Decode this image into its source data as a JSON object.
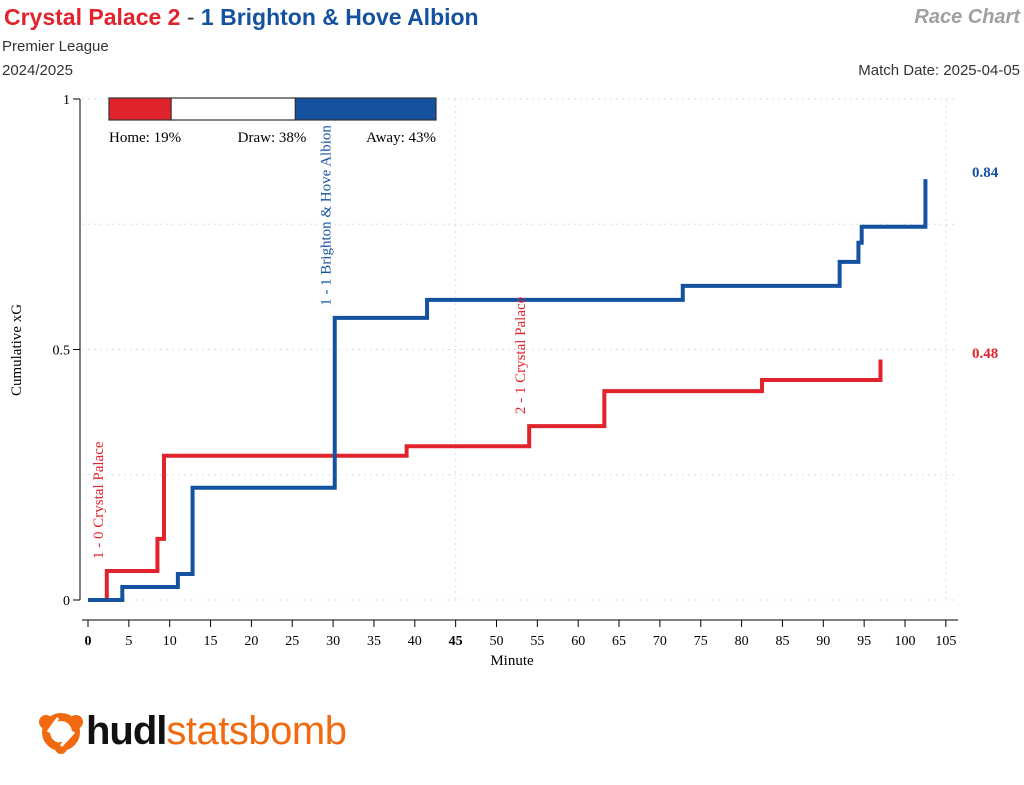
{
  "header": {
    "home_label": "Crystal Palace 2",
    "separator": "-",
    "away_label": "1 Brighton & Hove Albion",
    "competition": "Premier League",
    "season": "2024/2025",
    "chart_type_label": "Race Chart",
    "match_date": "Match Date: 2025-04-05"
  },
  "colors": {
    "home": "#e0232c",
    "away": "#1452a0",
    "logo_orange": "#f26a10"
  },
  "win_probability": {
    "home": 19,
    "draw": 38,
    "away": 43,
    "home_label": "Home: 19%",
    "draw_label": "Draw: 38%",
    "away_label": "Away: 43%"
  },
  "chart_data": {
    "type": "line",
    "step": true,
    "xlabel": "Minute",
    "ylabel": "Cumulative xG",
    "xlim": [
      0,
      105
    ],
    "ylim": [
      0,
      1
    ],
    "xticks": [
      0,
      5,
      10,
      15,
      20,
      25,
      30,
      35,
      40,
      45,
      50,
      55,
      60,
      65,
      70,
      75,
      80,
      85,
      90,
      95,
      100,
      105
    ],
    "xtick_labels": [
      "0",
      "5",
      "10",
      "15",
      "20",
      "25",
      "30",
      "35",
      "40",
      "45",
      "50",
      "55",
      "60",
      "65",
      "70",
      "75",
      "80",
      "85",
      "90",
      "95",
      "100",
      "105"
    ],
    "yticks": [
      0,
      0.5,
      1
    ],
    "ytick_labels": [
      "0",
      "0.5",
      "1"
    ],
    "grid": "dotted at y 0.25 steps, x at 45 and 105",
    "series": [
      {
        "name": "Crystal Palace",
        "side": "home",
        "final_label": "0.48",
        "x": [
          0,
          2.3,
          8.5,
          9.3,
          39,
          54,
          63.2,
          82.5,
          97
        ],
        "y": [
          0,
          0.058,
          0.122,
          0.288,
          0.307,
          0.347,
          0.417,
          0.439,
          0.48
        ]
      },
      {
        "name": "Brighton & Hove Albion",
        "side": "away",
        "final_label": "0.84",
        "x": [
          0,
          4.2,
          11,
          12.8,
          30.2,
          41.5,
          72.8,
          92,
          94.3,
          94.7,
          102.5
        ],
        "y": [
          0,
          0.026,
          0.052,
          0.224,
          0.563,
          0.599,
          0.627,
          0.675,
          0.713,
          0.745,
          0.84
        ]
      }
    ],
    "annotations": [
      {
        "minute": 2.3,
        "side": "home",
        "text": "1 - 0 Crystal Palace"
      },
      {
        "minute": 30.2,
        "side": "away",
        "text": "1 - 1 Brighton & Hove Albion"
      },
      {
        "minute": 54,
        "side": "home",
        "text": "2 - 1 Crystal Palace"
      }
    ]
  },
  "logo": {
    "part1": "hudl",
    "part2": "statsbomb"
  }
}
